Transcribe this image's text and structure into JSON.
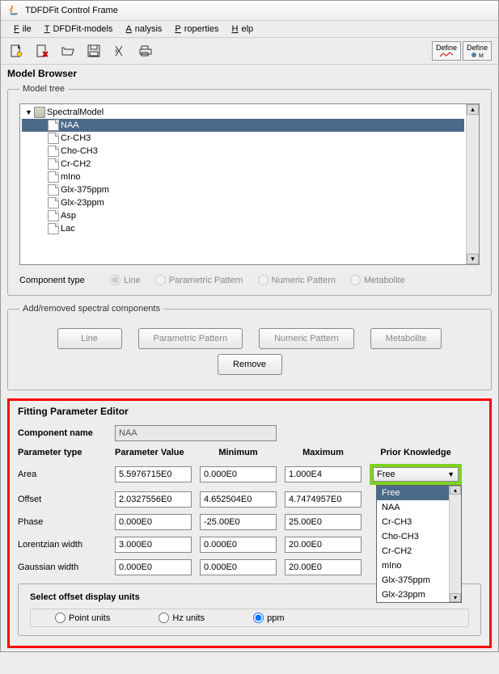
{
  "window": {
    "title": "TDFDFit Control Frame"
  },
  "menubar": [
    "File",
    "TDFDFit-models",
    "Analysis",
    "Properties",
    "Help"
  ],
  "toolbar": {
    "define_buttons": [
      "Define",
      "Define"
    ]
  },
  "model_browser": {
    "title": "Model Browser",
    "tree_legend": "Model tree",
    "root": "SpectralModel",
    "selected_index": 0,
    "children": [
      "NAA",
      "Cr-CH3",
      "Cho-CH3",
      "Cr-CH2",
      "mIno",
      "Glx-375ppm",
      "Glx-23ppm",
      "Asp",
      "Lac"
    ],
    "component_type_label": "Component type",
    "component_types": [
      "Line",
      "Parametric Pattern",
      "Numeric Pattern",
      "Metabolite"
    ],
    "component_type_selected": 0
  },
  "add_remove": {
    "legend": "Add/removed spectral components",
    "buttons": [
      "Line",
      "Parametric Pattern",
      "Numeric Pattern",
      "Metabolite"
    ],
    "remove": "Remove"
  },
  "fitting": {
    "title": "Fitting Parameter Editor",
    "component_name_label": "Component name",
    "component_name_value": "NAA",
    "headers": [
      "Parameter type",
      "Parameter Value",
      "Minimum",
      "Maximum",
      "Prior Knowledge"
    ],
    "rows": [
      {
        "label": "Area",
        "value": "5.5976715E0",
        "min": "0.000E0",
        "max": "1.000E4"
      },
      {
        "label": "Offset",
        "value": "2.0327556E0",
        "min": "4.652504E0",
        "max": "4.7474957E0"
      },
      {
        "label": "Phase",
        "value": "0.000E0",
        "min": "-25.00E0",
        "max": "25.00E0"
      },
      {
        "label": "Lorentzian width",
        "value": "3.000E0",
        "min": "0.000E0",
        "max": "20.00E0"
      },
      {
        "label": "Gaussian width",
        "value": "0.000E0",
        "min": "0.000E0",
        "max": "20.00E0"
      }
    ],
    "prior_selected": "Free",
    "prior_options": [
      "Free",
      "NAA",
      "Cr-CH3",
      "Cho-CH3",
      "Cr-CH2",
      "mIno",
      "Glx-375ppm",
      "Glx-23ppm"
    ],
    "offset_units": {
      "title": "Select offset display units",
      "options": [
        "Point units",
        "Hz units",
        "ppm"
      ],
      "selected": 2
    }
  }
}
